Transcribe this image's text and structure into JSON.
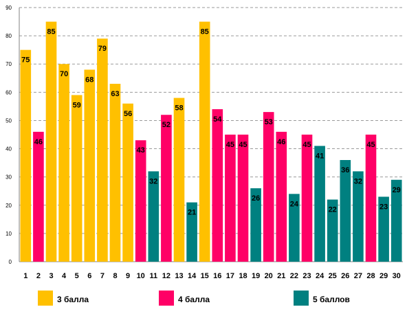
{
  "chart_data": {
    "type": "bar",
    "categories": [
      "1",
      "2",
      "3",
      "4",
      "5",
      "6",
      "7",
      "8",
      "9",
      "10",
      "11",
      "12",
      "13",
      "14",
      "15",
      "16",
      "17",
      "18",
      "19",
      "20",
      "21",
      "22",
      "23",
      "24",
      "25",
      "26",
      "27",
      "28",
      "29",
      "30"
    ],
    "values": [
      75,
      46,
      85,
      70,
      59,
      68,
      79,
      63,
      56,
      43,
      32,
      52,
      58,
      21,
      85,
      54,
      45,
      45,
      26,
      53,
      46,
      24,
      45,
      41,
      22,
      36,
      32,
      45,
      23,
      29
    ],
    "grades": [
      "3",
      "4",
      "3",
      "3",
      "3",
      "3",
      "3",
      "3",
      "3",
      "4",
      "5",
      "4",
      "3",
      "5",
      "3",
      "4",
      "4",
      "4",
      "5",
      "4",
      "4",
      "5",
      "4",
      "5",
      "5",
      "5",
      "5",
      "4",
      "5",
      "5"
    ],
    "ylim": [
      0,
      90
    ],
    "yticks": [
      0,
      10,
      20,
      30,
      40,
      50,
      60,
      70,
      80,
      90
    ],
    "grid": true,
    "legend_position": "bottom",
    "legend": [
      {
        "grade": "3",
        "label": "3 балла",
        "color": "#ffc000"
      },
      {
        "grade": "4",
        "label": "4 балла",
        "color": "#ff0066"
      },
      {
        "grade": "5",
        "label": "5 баллов",
        "color": "#008080"
      }
    ]
  }
}
